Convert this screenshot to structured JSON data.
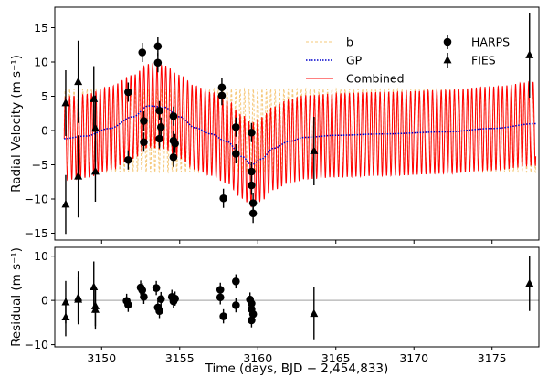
{
  "chart_data": [
    {
      "type": "scatter",
      "xlabel": "",
      "ylabel": "Radial Velocity (m s⁻¹)",
      "xlim": [
        3147,
        3178
      ],
      "ylim": [
        -16,
        18
      ],
      "yticks": [
        15,
        10,
        5,
        0,
        -5,
        -10,
        -15
      ],
      "xticks": [
        3150,
        3155,
        3160,
        3165,
        3170,
        3175
      ],
      "grid": false,
      "legend_position": "top-right",
      "model": {
        "planet_b": {
          "name": "b",
          "color": "#f5c87a",
          "style": "dashed",
          "amplitude": 6.1,
          "period_days": 0.28
        },
        "gp": {
          "name": "GP",
          "color": "#0000cc",
          "style": "dotted",
          "x": [
            3147.5,
            3149,
            3150.5,
            3152,
            3153,
            3154,
            3155,
            3156,
            3157,
            3158,
            3159,
            3159.6,
            3160.2,
            3161,
            3162,
            3163,
            3165,
            3168,
            3172,
            3175,
            3177.8
          ],
          "y": [
            -1.2,
            -0.8,
            0.3,
            2.0,
            3.6,
            3.4,
            2.0,
            0.4,
            -0.5,
            -1.6,
            -3.8,
            -5.0,
            -4.2,
            -2.6,
            -1.6,
            -1.0,
            -0.7,
            -0.5,
            -0.2,
            0.3,
            1.0
          ]
        },
        "combined": {
          "name": "Combined",
          "color": "#ff0000",
          "style": "solid"
        }
      },
      "series": [
        {
          "name": "HARPS",
          "marker": "circle",
          "points": [
            {
              "x": 3151.7,
              "y": 5.6,
              "err": 1.4
            },
            {
              "x": 3151.7,
              "y": -4.3,
              "err": 1.4
            },
            {
              "x": 3152.6,
              "y": 11.4,
              "err": 1.4
            },
            {
              "x": 3152.7,
              "y": 1.4,
              "err": 1.4
            },
            {
              "x": 3152.7,
              "y": -1.7,
              "err": 1.4
            },
            {
              "x": 3153.6,
              "y": 12.3,
              "err": 1.4
            },
            {
              "x": 3153.6,
              "y": 9.9,
              "err": 1.4
            },
            {
              "x": 3153.7,
              "y": 2.9,
              "err": 1.4
            },
            {
              "x": 3153.8,
              "y": 0.5,
              "err": 1.4
            },
            {
              "x": 3153.7,
              "y": -1.2,
              "err": 1.4
            },
            {
              "x": 3154.6,
              "y": 2.1,
              "err": 1.4
            },
            {
              "x": 3154.6,
              "y": -1.5,
              "err": 1.4
            },
            {
              "x": 3154.7,
              "y": -1.9,
              "err": 1.4
            },
            {
              "x": 3154.6,
              "y": -3.9,
              "err": 1.4
            },
            {
              "x": 3157.7,
              "y": 6.3,
              "err": 1.4
            },
            {
              "x": 3157.7,
              "y": 5.1,
              "err": 1.4
            },
            {
              "x": 3157.8,
              "y": -9.9,
              "err": 1.4
            },
            {
              "x": 3158.6,
              "y": 0.5,
              "err": 1.4
            },
            {
              "x": 3158.6,
              "y": -3.4,
              "err": 1.4
            },
            {
              "x": 3159.6,
              "y": -0.3,
              "err": 1.4
            },
            {
              "x": 3159.6,
              "y": -6.0,
              "err": 1.4
            },
            {
              "x": 3159.6,
              "y": -8.0,
              "err": 1.4
            },
            {
              "x": 3159.7,
              "y": -10.6,
              "err": 1.4
            },
            {
              "x": 3159.7,
              "y": -12.1,
              "err": 1.4
            }
          ]
        },
        {
          "name": "FIES",
          "marker": "triangle",
          "points": [
            {
              "x": 3147.7,
              "y": 4.0,
              "err": 4.8
            },
            {
              "x": 3147.7,
              "y": -10.8,
              "err": 4.3
            },
            {
              "x": 3148.5,
              "y": 7.1,
              "err": 6.0
            },
            {
              "x": 3148.5,
              "y": -6.7,
              "err": 6.0
            },
            {
              "x": 3149.5,
              "y": 4.6,
              "err": 4.8
            },
            {
              "x": 3149.6,
              "y": 0.3,
              "err": 4.8
            },
            {
              "x": 3149.6,
              "y": -6.0,
              "err": 4.4
            },
            {
              "x": 3163.6,
              "y": -3.0,
              "err": 5.0
            },
            {
              "x": 3177.4,
              "y": 11.0,
              "err": 6.2
            }
          ]
        }
      ]
    },
    {
      "type": "scatter",
      "xlabel": "Time (days, BJD − 2,454,833)",
      "ylabel": "Residual (m s⁻¹)",
      "xlim": [
        3147,
        3178
      ],
      "ylim": [
        -10.5,
        12
      ],
      "yticks": [
        10,
        0,
        -10
      ],
      "xticks": [
        3150,
        3155,
        3160,
        3165,
        3170,
        3175
      ],
      "grid": false,
      "reference_line": 0,
      "series": [
        {
          "name": "HARPS",
          "marker": "circle",
          "points": [
            {
              "x": 3151.6,
              "y": -0.1,
              "err": 1.6
            },
            {
              "x": 3151.7,
              "y": -1.0,
              "err": 1.6
            },
            {
              "x": 3152.5,
              "y": 2.9,
              "err": 1.6
            },
            {
              "x": 3152.6,
              "y": 2.3,
              "err": 1.6
            },
            {
              "x": 3152.7,
              "y": 0.8,
              "err": 1.6
            },
            {
              "x": 3153.5,
              "y": 2.8,
              "err": 1.6
            },
            {
              "x": 3153.6,
              "y": -1.6,
              "err": 1.6
            },
            {
              "x": 3153.7,
              "y": -2.4,
              "err": 1.6
            },
            {
              "x": 3153.8,
              "y": 0.3,
              "err": 1.6
            },
            {
              "x": 3154.5,
              "y": 0.8,
              "err": 1.6
            },
            {
              "x": 3154.6,
              "y": -0.2,
              "err": 1.6
            },
            {
              "x": 3154.7,
              "y": 0.4,
              "err": 1.6
            },
            {
              "x": 3157.6,
              "y": 2.4,
              "err": 1.6
            },
            {
              "x": 3157.6,
              "y": 0.7,
              "err": 1.6
            },
            {
              "x": 3157.8,
              "y": -3.6,
              "err": 1.6
            },
            {
              "x": 3158.6,
              "y": 4.3,
              "err": 1.6
            },
            {
              "x": 3158.6,
              "y": -1.1,
              "err": 1.6
            },
            {
              "x": 3159.5,
              "y": 0.2,
              "err": 1.6
            },
            {
              "x": 3159.6,
              "y": -0.7,
              "err": 1.6
            },
            {
              "x": 3159.6,
              "y": -2.0,
              "err": 1.6
            },
            {
              "x": 3159.7,
              "y": -3.1,
              "err": 1.6
            },
            {
              "x": 3159.6,
              "y": -4.5,
              "err": 1.6
            }
          ]
        },
        {
          "name": "FIES",
          "marker": "triangle",
          "points": [
            {
              "x": 3147.7,
              "y": -0.4,
              "err": 4.8
            },
            {
              "x": 3147.7,
              "y": -3.8,
              "err": 4.3
            },
            {
              "x": 3148.5,
              "y": 0.6,
              "err": 6.0
            },
            {
              "x": 3148.5,
              "y": 0.2,
              "err": 5.0
            },
            {
              "x": 3149.5,
              "y": 3.0,
              "err": 5.8
            },
            {
              "x": 3149.6,
              "y": -1.3,
              "err": 4.5
            },
            {
              "x": 3149.6,
              "y": -2.1,
              "err": 4.5
            },
            {
              "x": 3163.6,
              "y": -3.0,
              "err": 6.0
            },
            {
              "x": 3177.4,
              "y": 3.8,
              "err": 6.2
            }
          ]
        }
      ]
    }
  ]
}
